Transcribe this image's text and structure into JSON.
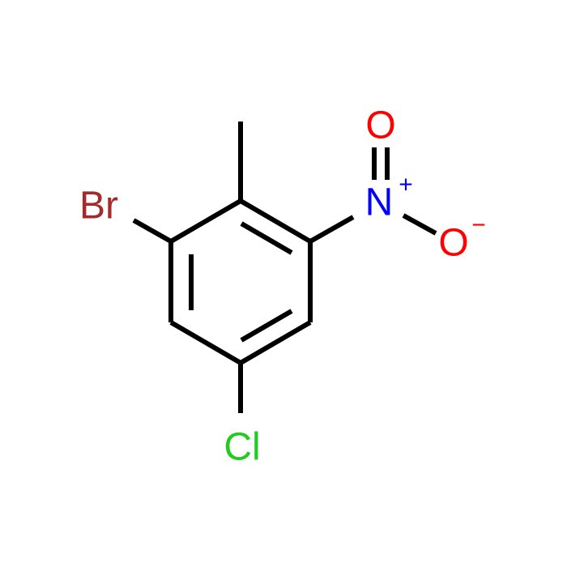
{
  "atoms": {
    "bromine": "Br",
    "nitrogen": "N",
    "nitrogen_charge": "+",
    "oxygen_top": "O",
    "oxygen_right": "O",
    "oxygen_right_charge": "−",
    "chlorine": "Cl"
  }
}
